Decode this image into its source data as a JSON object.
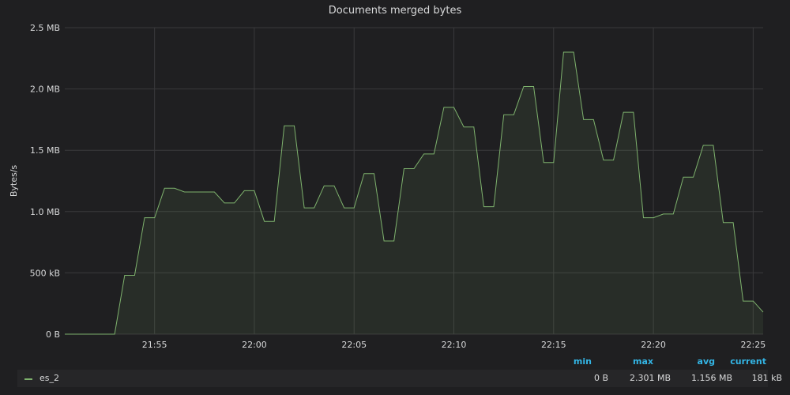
{
  "panel": {
    "title": "Documents merged bytes"
  },
  "chart_data": {
    "type": "area",
    "title": "Documents merged bytes",
    "ylabel": "Bytes/s",
    "ylim": [
      0,
      2.5
    ],
    "yunit": "MB",
    "yticks": [
      {
        "value": 0,
        "label": "0 B"
      },
      {
        "value": 0.5,
        "label": "500 kB"
      },
      {
        "value": 1.0,
        "label": "1.0 MB"
      },
      {
        "value": 1.5,
        "label": "1.5 MB"
      },
      {
        "value": 2.0,
        "label": "2.0 MB"
      },
      {
        "value": 2.5,
        "label": "2.5 MB"
      }
    ],
    "xticks": [
      "21:55",
      "22:00",
      "22:05",
      "22:10",
      "22:15",
      "22:20",
      "22:25"
    ],
    "xrange": [
      "21:50:30",
      "22:25:30"
    ],
    "grid": true,
    "legend_position": "bottom",
    "series": [
      {
        "name": "es_2",
        "color": "#7eb26d",
        "points": [
          [
            "21:50:30",
            0
          ],
          [
            "21:51:00",
            0
          ],
          [
            "21:51:30",
            0
          ],
          [
            "21:52:00",
            0
          ],
          [
            "21:52:30",
            0
          ],
          [
            "21:53:00",
            0
          ],
          [
            "21:53:30",
            0.48
          ],
          [
            "21:54:00",
            0.48
          ],
          [
            "21:54:30",
            0.95
          ],
          [
            "21:55:00",
            0.95
          ],
          [
            "21:55:30",
            1.19
          ],
          [
            "21:56:00",
            1.19
          ],
          [
            "21:56:30",
            1.16
          ],
          [
            "21:57:00",
            1.16
          ],
          [
            "21:57:30",
            1.16
          ],
          [
            "21:58:00",
            1.16
          ],
          [
            "21:58:30",
            1.07
          ],
          [
            "21:59:00",
            1.07
          ],
          [
            "21:59:30",
            1.17
          ],
          [
            "22:00:00",
            1.17
          ],
          [
            "22:00:30",
            0.92
          ],
          [
            "22:01:00",
            0.92
          ],
          [
            "22:01:30",
            1.7
          ],
          [
            "22:02:00",
            1.7
          ],
          [
            "22:02:30",
            1.03
          ],
          [
            "22:03:00",
            1.03
          ],
          [
            "22:03:30",
            1.21
          ],
          [
            "22:04:00",
            1.21
          ],
          [
            "22:04:30",
            1.03
          ],
          [
            "22:05:00",
            1.03
          ],
          [
            "22:05:30",
            1.31
          ],
          [
            "22:06:00",
            1.31
          ],
          [
            "22:06:30",
            0.76
          ],
          [
            "22:07:00",
            0.76
          ],
          [
            "22:07:30",
            1.35
          ],
          [
            "22:08:00",
            1.35
          ],
          [
            "22:08:30",
            1.47
          ],
          [
            "22:09:00",
            1.47
          ],
          [
            "22:09:30",
            1.85
          ],
          [
            "22:10:00",
            1.85
          ],
          [
            "22:10:30",
            1.69
          ],
          [
            "22:11:00",
            1.69
          ],
          [
            "22:11:30",
            1.04
          ],
          [
            "22:12:00",
            1.04
          ],
          [
            "22:12:30",
            1.79
          ],
          [
            "22:13:00",
            1.79
          ],
          [
            "22:13:30",
            2.02
          ],
          [
            "22:14:00",
            2.02
          ],
          [
            "22:14:30",
            1.4
          ],
          [
            "22:15:00",
            1.4
          ],
          [
            "22:15:30",
            2.3
          ],
          [
            "22:16:00",
            2.3
          ],
          [
            "22:16:30",
            1.75
          ],
          [
            "22:17:00",
            1.75
          ],
          [
            "22:17:30",
            1.42
          ],
          [
            "22:18:00",
            1.42
          ],
          [
            "22:18:30",
            1.81
          ],
          [
            "22:19:00",
            1.81
          ],
          [
            "22:19:30",
            0.95
          ],
          [
            "22:20:00",
            0.95
          ],
          [
            "22:20:30",
            0.98
          ],
          [
            "22:21:00",
            0.98
          ],
          [
            "22:21:30",
            1.28
          ],
          [
            "22:22:00",
            1.28
          ],
          [
            "22:22:30",
            1.54
          ],
          [
            "22:23:00",
            1.54
          ],
          [
            "22:23:30",
            0.91
          ],
          [
            "22:24:00",
            0.91
          ],
          [
            "22:24:30",
            0.27
          ],
          [
            "22:25:00",
            0.27
          ],
          [
            "22:25:30",
            0.18
          ]
        ]
      }
    ]
  },
  "legend": {
    "headers": {
      "min": "min",
      "max": "max",
      "avg": "avg",
      "current": "current"
    },
    "rows": [
      {
        "name": "es_2",
        "min": "0 B",
        "max": "2.301 MB",
        "avg": "1.156 MB",
        "current": "181 kB"
      }
    ]
  },
  "colors": {
    "background": "#1f1f21",
    "series": "#7eb26d",
    "grid": "#3a3a3c",
    "legend_header": "#33b5e5"
  }
}
